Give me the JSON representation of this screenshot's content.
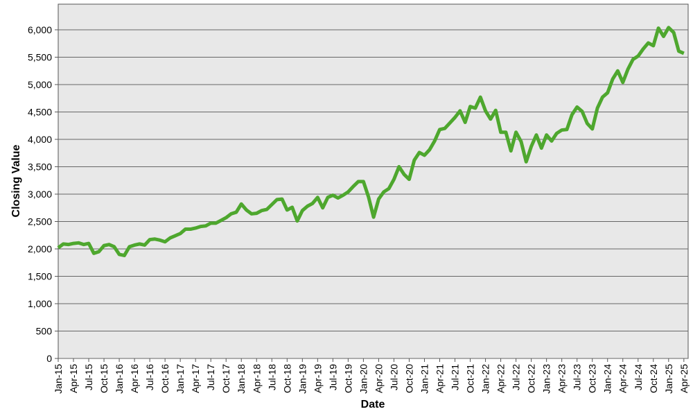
{
  "chart_data": {
    "type": "line",
    "x_label": "Date",
    "y_label": "Closing Value",
    "x": [
      "2015-01",
      "2015-02",
      "2015-03",
      "2015-04",
      "2015-05",
      "2015-06",
      "2015-07",
      "2015-08",
      "2015-09",
      "2015-10",
      "2015-11",
      "2015-12",
      "2016-01",
      "2016-02",
      "2016-03",
      "2016-04",
      "2016-05",
      "2016-06",
      "2016-07",
      "2016-08",
      "2016-09",
      "2016-10",
      "2016-11",
      "2016-12",
      "2017-01",
      "2017-02",
      "2017-03",
      "2017-04",
      "2017-05",
      "2017-06",
      "2017-07",
      "2017-08",
      "2017-09",
      "2017-10",
      "2017-11",
      "2017-12",
      "2018-01",
      "2018-02",
      "2018-03",
      "2018-04",
      "2018-05",
      "2018-06",
      "2018-07",
      "2018-08",
      "2018-09",
      "2018-10",
      "2018-11",
      "2018-12",
      "2019-01",
      "2019-02",
      "2019-03",
      "2019-04",
      "2019-05",
      "2019-06",
      "2019-07",
      "2019-08",
      "2019-09",
      "2019-10",
      "2019-11",
      "2019-12",
      "2020-01",
      "2020-02",
      "2020-03",
      "2020-04",
      "2020-05",
      "2020-06",
      "2020-07",
      "2020-08",
      "2020-09",
      "2020-10",
      "2020-11",
      "2020-12",
      "2021-01",
      "2021-02",
      "2021-03",
      "2021-04",
      "2021-05",
      "2021-06",
      "2021-07",
      "2021-08",
      "2021-09",
      "2021-10",
      "2021-11",
      "2021-12",
      "2022-01",
      "2022-02",
      "2022-03",
      "2022-04",
      "2022-05",
      "2022-06",
      "2022-07",
      "2022-08",
      "2022-09",
      "2022-10",
      "2022-11",
      "2022-12",
      "2023-01",
      "2023-02",
      "2023-03",
      "2023-04",
      "2023-05",
      "2023-06",
      "2023-07",
      "2023-08",
      "2023-09",
      "2023-10",
      "2023-11",
      "2023-12",
      "2024-01",
      "2024-02",
      "2024-03",
      "2024-04",
      "2024-05",
      "2024-06",
      "2024-07",
      "2024-08",
      "2024-09",
      "2024-10",
      "2024-11",
      "2024-12",
      "2025-01",
      "2025-02",
      "2025-03",
      "2025-04"
    ],
    "series": [
      {
        "color": "#4ea72e",
        "values": [
          2020,
          2090,
          2080,
          2100,
          2110,
          2080,
          2100,
          1920,
          1950,
          2060,
          2080,
          2040,
          1900,
          1880,
          2040,
          2070,
          2090,
          2070,
          2170,
          2180,
          2160,
          2130,
          2200,
          2240,
          2280,
          2360,
          2360,
          2380,
          2410,
          2420,
          2470,
          2470,
          2520,
          2570,
          2640,
          2670,
          2820,
          2710,
          2640,
          2650,
          2700,
          2720,
          2810,
          2900,
          2910,
          2710,
          2760,
          2510,
          2700,
          2780,
          2830,
          2940,
          2750,
          2940,
          2980,
          2930,
          2980,
          3040,
          3140,
          3230,
          3230,
          2950,
          2580,
          2910,
          3040,
          3100,
          3270,
          3500,
          3360,
          3270,
          3620,
          3760,
          3710,
          3810,
          3970,
          4180,
          4200,
          4300,
          4400,
          4520,
          4310,
          4600,
          4570,
          4770,
          4520,
          4370,
          4530,
          4130,
          4130,
          3790,
          4130,
          3960,
          3590,
          3870,
          4080,
          3840,
          4080,
          3970,
          4110,
          4170,
          4180,
          4450,
          4590,
          4510,
          4290,
          4190,
          4570,
          4770,
          4850,
          5100,
          5250,
          5040,
          5280,
          5460,
          5520,
          5650,
          5760,
          5710,
          6030,
          5880,
          6040,
          5950,
          5610,
          5570
        ]
      }
    ],
    "ylim": [
      0,
      6468
    ],
    "yticks": [
      0,
      500,
      {
        "value": 1000,
        "label": "1,000"
      },
      {
        "value": 1500,
        "label": "1,500"
      },
      {
        "value": 2000,
        "label": "2,000"
      },
      {
        "value": 2500,
        "label": "2,500"
      },
      {
        "value": 3000,
        "label": "3,000"
      },
      {
        "value": 3500,
        "label": "3,500"
      },
      {
        "value": 4000,
        "label": "4,000"
      },
      {
        "value": 4500,
        "label": "4,500"
      },
      {
        "value": 5000,
        "label": "5,000"
      },
      {
        "value": 5500,
        "label": "5,500"
      },
      {
        "value": 6000,
        "label": "6,000"
      }
    ],
    "xticks": [
      {
        "value": "2015-01",
        "label": "Jan-15"
      },
      {
        "value": "2015-04",
        "label": "Apr-15"
      },
      {
        "value": "2015-07",
        "label": "Jul-15"
      },
      {
        "value": "2015-10",
        "label": "Oct-15"
      },
      {
        "value": "2016-01",
        "label": "Jan-16"
      },
      {
        "value": "2016-04",
        "label": "Apr-16"
      },
      {
        "value": "2016-07",
        "label": "Jul-16"
      },
      {
        "value": "2016-10",
        "label": "Oct-16"
      },
      {
        "value": "2017-01",
        "label": "Jan-17"
      },
      {
        "value": "2017-04",
        "label": "Apr-17"
      },
      {
        "value": "2017-07",
        "label": "Jul-17"
      },
      {
        "value": "2017-10",
        "label": "Oct-17"
      },
      {
        "value": "2018-01",
        "label": "Jan-18"
      },
      {
        "value": "2018-04",
        "label": "Apr-18"
      },
      {
        "value": "2018-07",
        "label": "Jul-18"
      },
      {
        "value": "2018-10",
        "label": "Oct-18"
      },
      {
        "value": "2019-01",
        "label": "Jan-19"
      },
      {
        "value": "2019-04",
        "label": "Apr-19"
      },
      {
        "value": "2019-07",
        "label": "Jul-19"
      },
      {
        "value": "2019-10",
        "label": "Oct-19"
      },
      {
        "value": "2020-01",
        "label": "Jan-20"
      },
      {
        "value": "2020-04",
        "label": "Apr-20"
      },
      {
        "value": "2020-07",
        "label": "Jul-20"
      },
      {
        "value": "2020-10",
        "label": "Oct-20"
      },
      {
        "value": "2021-01",
        "label": "Jan-21"
      },
      {
        "value": "2021-04",
        "label": "Apr-21"
      },
      {
        "value": "2021-07",
        "label": "Jul-21"
      },
      {
        "value": "2021-10",
        "label": "Oct-21"
      },
      {
        "value": "2022-01",
        "label": "Jan-22"
      },
      {
        "value": "2022-04",
        "label": "Apr-22"
      },
      {
        "value": "2022-07",
        "label": "Jul-22"
      },
      {
        "value": "2022-10",
        "label": "Oct-22"
      },
      {
        "value": "2023-01",
        "label": "Jan-23"
      },
      {
        "value": "2023-04",
        "label": "Apr-23"
      },
      {
        "value": "2023-07",
        "label": "Jul-23"
      },
      {
        "value": "2023-10",
        "label": "Oct-23"
      },
      {
        "value": "2024-01",
        "label": "Jan-24"
      },
      {
        "value": "2024-04",
        "label": "Apr-24"
      },
      {
        "value": "2024-07",
        "label": "Jul-24"
      },
      {
        "value": "2024-10",
        "label": "Oct-24"
      },
      {
        "value": "2025-01",
        "label": "Jan-25"
      },
      {
        "value": "2025-04",
        "label": "Apr-25"
      }
    ],
    "grid": true,
    "background": "#e8e8e8"
  }
}
